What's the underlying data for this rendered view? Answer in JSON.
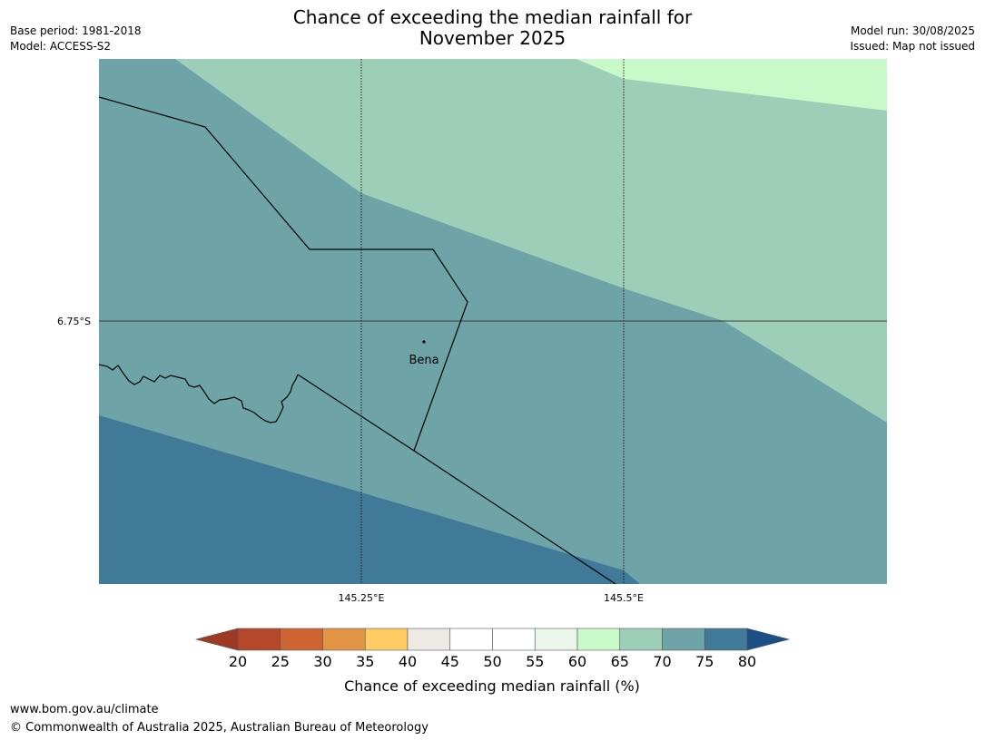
{
  "header": {
    "title_line1": "Chance of exceeding the median rainfall for",
    "title_line2": "November 2025",
    "base_period": "Base period: 1981-2018",
    "model": "Model: ACCESS-S2",
    "model_run": "Model run: 30/08/2025",
    "issued": "Issued: Map not issued"
  },
  "map": {
    "lat_label": "6.75°S",
    "lon_labels": [
      "145.25°E",
      "145.5°E"
    ],
    "place": {
      "name": "Bena"
    },
    "region_colors": {
      "p65_70": "#9dcfb8",
      "p70_75": "#6ea4a8",
      "p75_80": "#417a98",
      "p60_65": "#caf9c9"
    },
    "line_color": "#000000"
  },
  "colorbar": {
    "ticks": [
      "20",
      "25",
      "30",
      "35",
      "40",
      "45",
      "50",
      "55",
      "60",
      "65",
      "70",
      "75",
      "80"
    ],
    "colors": [
      "#b5472a",
      "#cd6432",
      "#e29545",
      "#fecc62",
      "#ede9e4",
      "#ffffff",
      "#ffffff",
      "#e9f6e9",
      "#caf9c9",
      "#9dcfb8",
      "#6ea4a8",
      "#417a98"
    ],
    "under_color": "#9e3a24",
    "over_color": "#1a5086",
    "label": "Chance of exceeding median rainfall (%)"
  },
  "footer": {
    "url": "www.bom.gov.au/climate",
    "copyright": "© Commonwealth of Australia 2025, Australian Bureau of Meteorology"
  }
}
